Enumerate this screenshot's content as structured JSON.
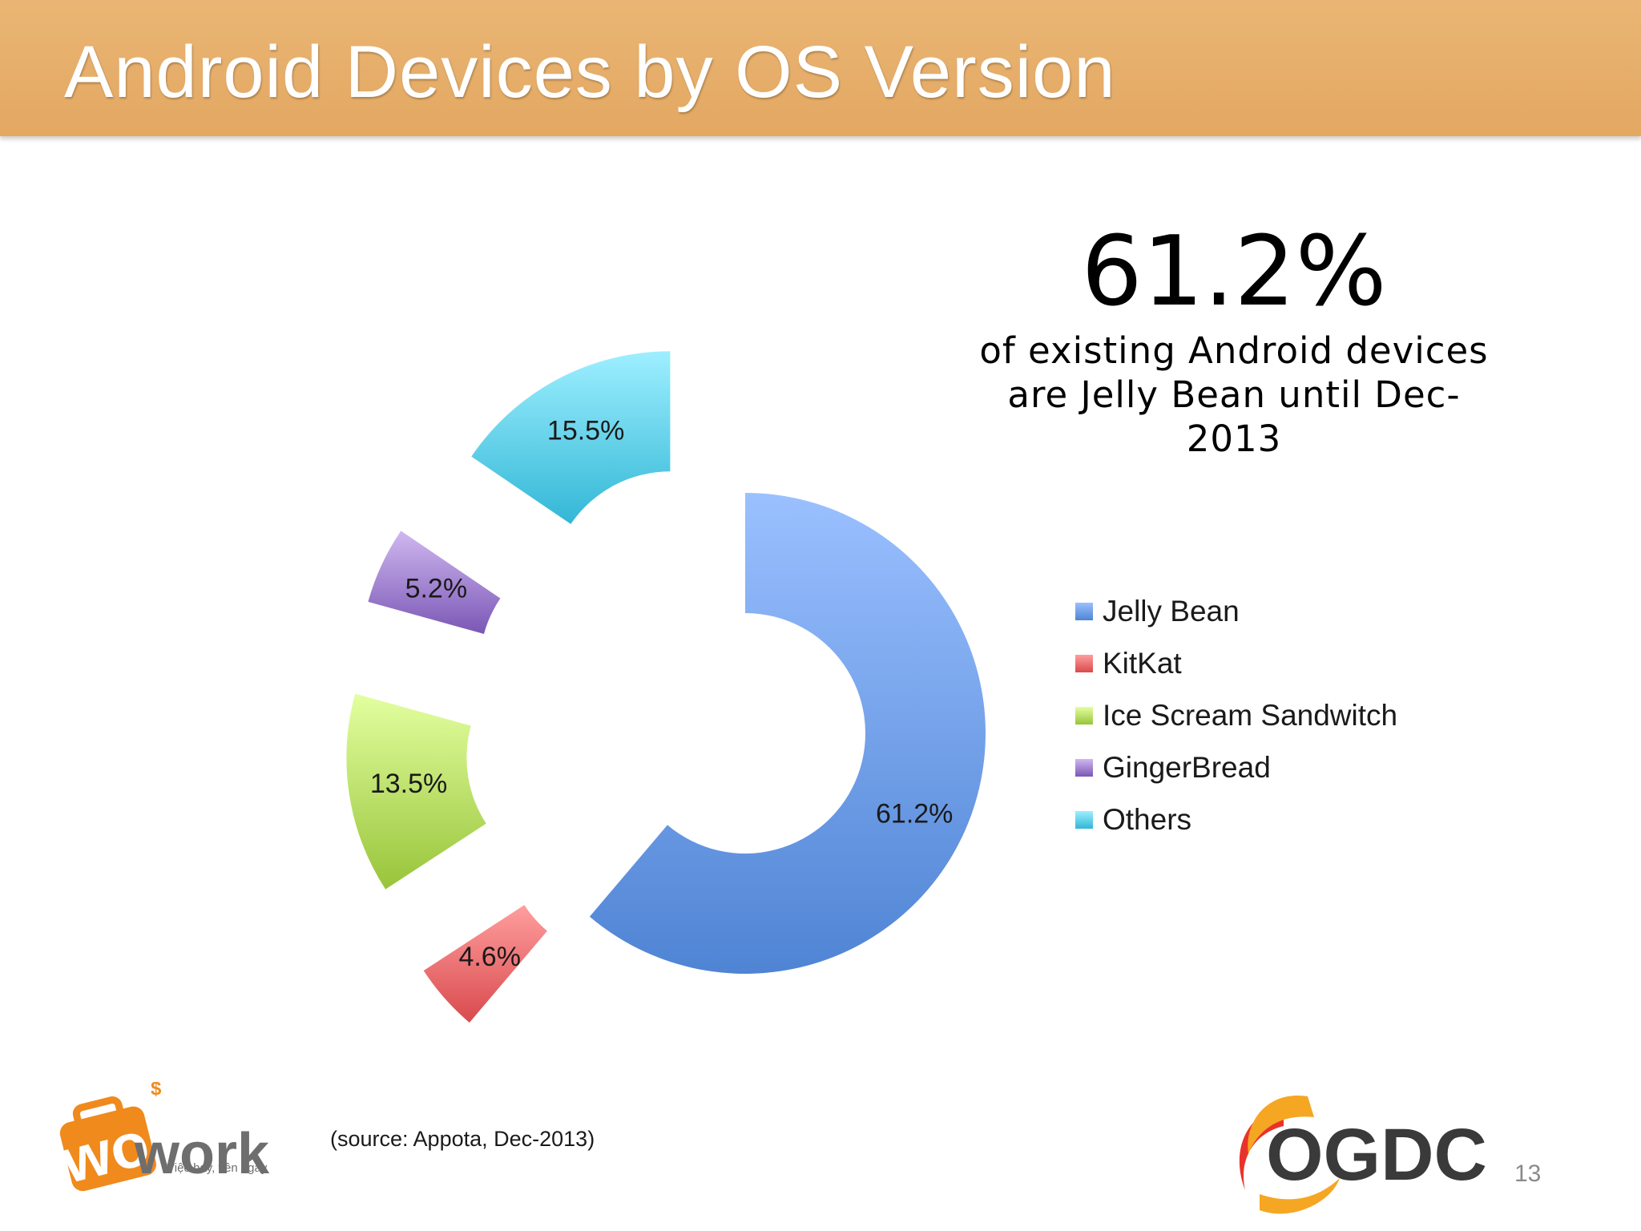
{
  "header": {
    "title": "Android Devices by OS Version"
  },
  "highlight": {
    "value": "61.2%",
    "line1": "of existing Android devices",
    "line2": "are Jelly Bean until Dec-",
    "line3": "2013"
  },
  "chart_data": {
    "type": "pie",
    "style": "exploded donut",
    "series": [
      {
        "name": "Jelly Bean",
        "value": 61.2,
        "label": "61.2%",
        "color": "#4f84d4",
        "light": "#9ac0ff"
      },
      {
        "name": "KitKat",
        "value": 4.6,
        "label": "4.6%",
        "color": "#d94a4d",
        "light": "#ff9e9e"
      },
      {
        "name": "Ice Scream Sandwitch",
        "value": 13.5,
        "label": "13.5%",
        "color": "#98c43a",
        "light": "#e3ffa0"
      },
      {
        "name": "GingerBread",
        "value": 5.2,
        "label": "5.2%",
        "color": "#7a57b5",
        "light": "#d0b8f0"
      },
      {
        "name": "Others",
        "value": 15.5,
        "label": "15.5%",
        "color": "#33b7d6",
        "light": "#9eefff"
      }
    ],
    "legend_position": "right"
  },
  "footer": {
    "source": "(source: Appota, Dec-2013)",
    "page_number": "13",
    "logo_left_text": "Mwork",
    "logo_left_tagline": "Việc hay, tiền ngay",
    "logo_right_text": "OGDC"
  }
}
